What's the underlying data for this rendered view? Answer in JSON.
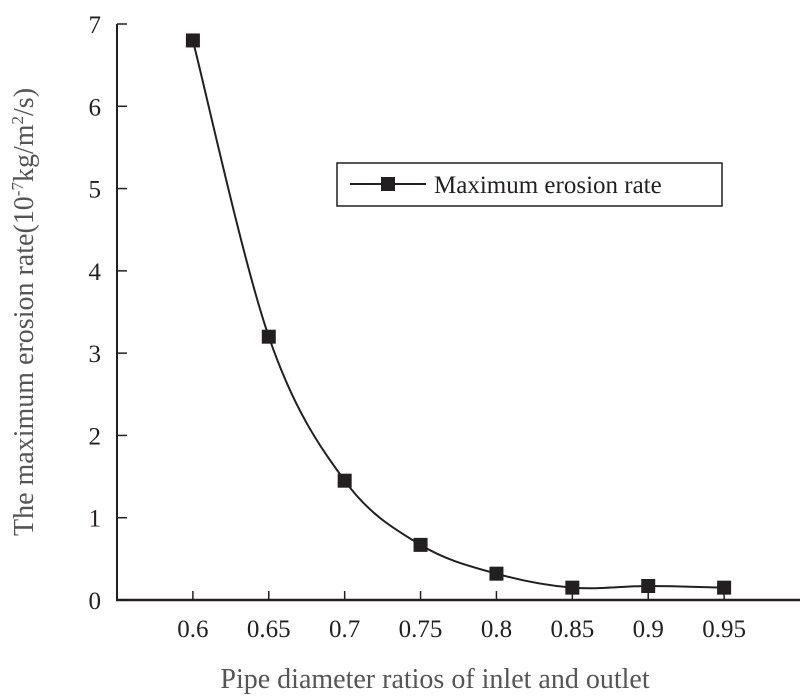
{
  "chart_data": {
    "type": "line",
    "title": "",
    "xlabel": "Pipe diameter ratios of inlet and outlet",
    "ylabel_prefix": "The maximum erosion rate(10",
    "ylabel_exp1": "-7",
    "ylabel_mid": "kg/m",
    "ylabel_exp2": "2",
    "ylabel_suffix": "/s)",
    "xlim": [
      0.55,
      1.0
    ],
    "ylim": [
      0,
      7
    ],
    "x_ticks": [
      "0.6",
      "0.65",
      "0.7",
      "0.75",
      "0.8",
      "0.85",
      "0.9",
      "0.95"
    ],
    "y_ticks": [
      "0",
      "1",
      "2",
      "3",
      "4",
      "5",
      "6",
      "7"
    ],
    "grid": false,
    "legend_position": "top-right",
    "series": [
      {
        "name": "Maximum erosion rate",
        "marker": "square",
        "smooth": true,
        "color": "#231f20",
        "x": [
          0.6,
          0.65,
          0.7,
          0.75,
          0.8,
          0.85,
          0.9,
          0.95
        ],
        "y": [
          6.8,
          3.2,
          1.45,
          0.67,
          0.32,
          0.15,
          0.17,
          0.15
        ]
      }
    ]
  }
}
